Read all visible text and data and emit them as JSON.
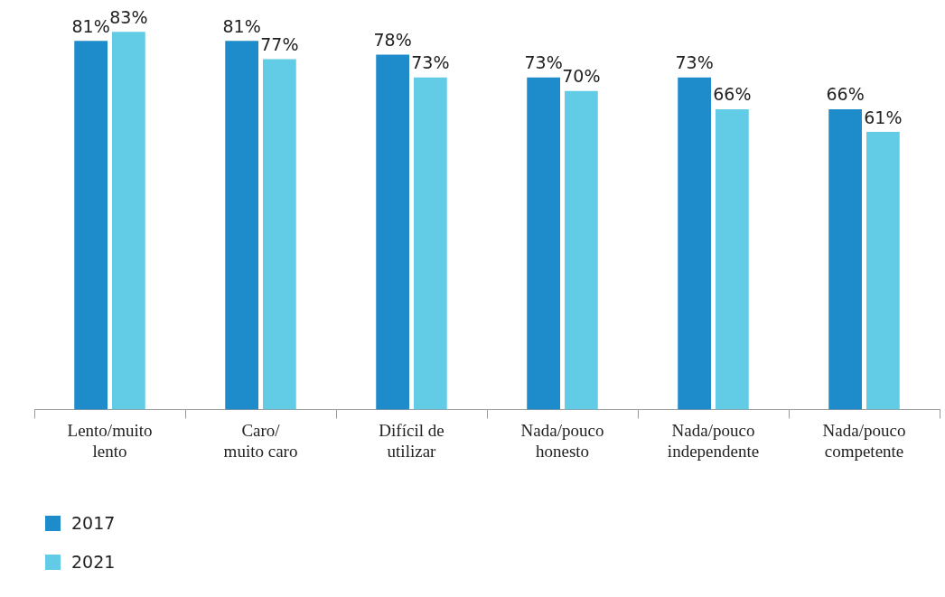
{
  "chart_data": {
    "type": "bar",
    "categories": [
      "Lento/muito\nlento",
      "Caro/\nmuito caro",
      "Difícil de\nutilizar",
      "Nada/pouco\nhonesto",
      "Nada/pouco\nindependente",
      "Nada/pouco\ncompetente"
    ],
    "series": [
      {
        "name": "2017",
        "color": "#1e8bcb",
        "values": [
          81,
          81,
          78,
          73,
          73,
          66
        ],
        "value_labels": [
          "81%",
          "81%",
          "78%",
          "73%",
          "73%",
          "66%"
        ]
      },
      {
        "name": "2021",
        "color": "#62cbe6",
        "values": [
          83,
          77,
          73,
          70,
          66,
          61
        ],
        "value_labels": [
          "83%",
          "77%",
          "73%",
          "70%",
          "66%",
          "61%"
        ]
      }
    ],
    "legend": "bottom left"
  }
}
